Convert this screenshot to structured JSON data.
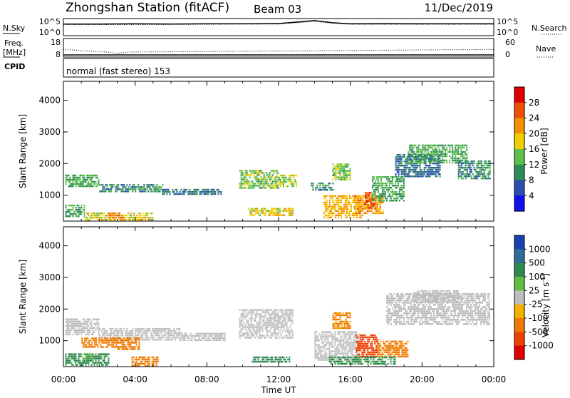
{
  "header": {
    "station": "Zhongshan Station (fitACF)",
    "beam": "Beam 03",
    "date": "11/Dec/2019"
  },
  "noise_panel": {
    "left_label": "N.Sky",
    "right_label": "N.Search",
    "left_ticks": [
      "10^5",
      "10^0"
    ],
    "right_ticks": [
      "10^5",
      "10^0"
    ]
  },
  "freq_panel": {
    "left_label_line1": "Freq.",
    "left_label_line2": "[MHz]",
    "right_label": "Nave",
    "left_ticks": [
      "18",
      "8"
    ],
    "right_ticks": [
      "60",
      "0"
    ]
  },
  "cpid": {
    "label": "CPID",
    "value": "normal (fast stereo) 153"
  },
  "axes": {
    "ylabel": "Slant Range [km]",
    "xlabel": "Time UT",
    "y_ticks": [
      "1000",
      "2000",
      "3000",
      "4000"
    ],
    "x_ticks": [
      "00:00",
      "04:00",
      "08:00",
      "12:00",
      "16:00",
      "20:00",
      "00:00"
    ]
  },
  "power_colorbar": {
    "label": "Power [dB]",
    "ticks": [
      "4",
      "8",
      "12",
      "16",
      "20",
      "24",
      "28"
    ],
    "colors": [
      "#1010ee",
      "#2a4fb0",
      "#2f8a5a",
      "#5cc04a",
      "#f0d000",
      "#f59000",
      "#f05000",
      "#e00000"
    ]
  },
  "velocity_colorbar": {
    "label": "Velocity [m s",
    "label_sup": "-1",
    "label_end": "]",
    "ticks": [
      "1000",
      "500",
      "100",
      "25",
      "-25",
      "-100",
      "-500",
      "-1000"
    ],
    "colors": [
      "#1a3fb5",
      "#2f6d9c",
      "#2f8a50",
      "#5fbf42",
      "#bebebe",
      "#f3b000",
      "#f07a00",
      "#ef4000",
      "#e00000"
    ]
  },
  "chart_data": [
    {
      "type": "line",
      "title": "",
      "series": [
        {
          "name": "N.Sky",
          "x": [
            0,
            2,
            4,
            6,
            8,
            10,
            12,
            13,
            14,
            15,
            16,
            18,
            20,
            22,
            24
          ],
          "values": [
            3.5,
            3.5,
            3.6,
            3.5,
            3.6,
            3.6,
            3.7,
            4.2,
            4.8,
            4.0,
            3.6,
            3.7,
            3.6,
            3.6,
            3.6
          ]
        },
        {
          "name": "N.Search",
          "x": [
            0,
            4,
            8,
            12,
            13,
            14,
            15,
            16,
            20,
            24
          ],
          "values": [
            3.3,
            3.3,
            3.4,
            3.5,
            4.0,
            4.5,
            3.8,
            3.4,
            3.4,
            3.4
          ]
        }
      ],
      "ylim": [
        0,
        5
      ]
    },
    {
      "type": "line",
      "series": [
        {
          "name": "Freq.",
          "x": [
            0,
            2.4,
            3.6,
            24
          ],
          "values": [
            8.5,
            8.5,
            8.5,
            8.5
          ]
        },
        {
          "name": "Nave",
          "x": [
            0,
            2.4,
            3.0,
            3.6,
            24
          ],
          "values": [
            26,
            15,
            10,
            15,
            26
          ]
        }
      ],
      "ylim": [
        8,
        18
      ]
    },
    {
      "type": "heatmap",
      "title": "Power [dB]",
      "xlabel": "Time UT",
      "ylabel": "Slant Range [km]",
      "xlim": [
        0,
        24
      ],
      "ylim": [
        180,
        4600
      ],
      "patches": [
        {
          "t": [
            0.1,
            2.0
          ],
          "r": [
            1250,
            1650
          ],
          "v": 12
        },
        {
          "t": [
            2.0,
            5.5
          ],
          "r": [
            1100,
            1350
          ],
          "v": 10
        },
        {
          "t": [
            5.5,
            8.8
          ],
          "r": [
            1000,
            1200
          ],
          "v": 8
        },
        {
          "t": [
            0.1,
            1.2
          ],
          "r": [
            350,
            700
          ],
          "v": 12
        },
        {
          "t": [
            1.2,
            5.0
          ],
          "r": [
            200,
            450
          ],
          "v": 18
        },
        {
          "t": [
            2.5,
            3.3
          ],
          "r": [
            250,
            450
          ],
          "v": 24
        },
        {
          "t": [
            9.8,
            12.0
          ],
          "r": [
            1250,
            1800
          ],
          "v": 14
        },
        {
          "t": [
            12.0,
            13.0
          ],
          "r": [
            1250,
            1650
          ],
          "v": 16
        },
        {
          "t": [
            10.3,
            12.8
          ],
          "r": [
            350,
            600
          ],
          "v": 18
        },
        {
          "t": [
            13.8,
            15.0
          ],
          "r": [
            1150,
            1400
          ],
          "v": 10
        },
        {
          "t": [
            14.5,
            16.8
          ],
          "r": [
            300,
            1000
          ],
          "v": 20
        },
        {
          "t": [
            15.0,
            16.0
          ],
          "r": [
            1500,
            2000
          ],
          "v": 14
        },
        {
          "t": [
            16.2,
            17.8
          ],
          "r": [
            450,
            1000
          ],
          "v": 22
        },
        {
          "t": [
            16.8,
            17.4
          ],
          "r": [
            600,
            1100
          ],
          "v": 26
        },
        {
          "t": [
            17.2,
            19.0
          ],
          "r": [
            850,
            1600
          ],
          "v": 12
        },
        {
          "t": [
            18.5,
            21.0
          ],
          "r": [
            1600,
            2300
          ],
          "v": 8
        },
        {
          "t": [
            19.2,
            22.5
          ],
          "r": [
            2000,
            2600
          ],
          "v": 12
        },
        {
          "t": [
            22.0,
            23.8
          ],
          "r": [
            1500,
            2100
          ],
          "v": 10
        }
      ]
    },
    {
      "type": "heatmap",
      "title": "Velocity [m s-1]",
      "xlabel": "Time UT",
      "ylabel": "Slant Range [km]",
      "xlim": [
        0,
        24
      ],
      "ylim": [
        180,
        4600
      ],
      "patches": [
        {
          "t": [
            0.1,
            2.0
          ],
          "r": [
            1200,
            1700
          ],
          "v": 0
        },
        {
          "t": [
            2.0,
            6.5
          ],
          "r": [
            1050,
            1400
          ],
          "v": 0
        },
        {
          "t": [
            6.5,
            9.0
          ],
          "r": [
            1000,
            1250
          ],
          "v": 0
        },
        {
          "t": [
            1.0,
            3.0
          ],
          "r": [
            800,
            1100
          ],
          "v": -200
        },
        {
          "t": [
            3.0,
            4.2
          ],
          "r": [
            700,
            1100
          ],
          "v": -300
        },
        {
          "t": [
            0.1,
            2.5
          ],
          "r": [
            250,
            600
          ],
          "v": 150
        },
        {
          "t": [
            3.8,
            5.3
          ],
          "r": [
            200,
            500
          ],
          "v": -400
        },
        {
          "t": [
            9.8,
            12.8
          ],
          "r": [
            1100,
            2000
          ],
          "v": 0
        },
        {
          "t": [
            10.5,
            12.6
          ],
          "r": [
            300,
            500
          ],
          "v": 200
        },
        {
          "t": [
            14.0,
            16.5
          ],
          "r": [
            400,
            1300
          ],
          "v": 0
        },
        {
          "t": [
            15.0,
            16.0
          ],
          "r": [
            1400,
            1900
          ],
          "v": -150
        },
        {
          "t": [
            16.3,
            17.5
          ],
          "r": [
            500,
            1200
          ],
          "v": -700
        },
        {
          "t": [
            17.5,
            19.2
          ],
          "r": [
            500,
            1000
          ],
          "v": -300
        },
        {
          "t": [
            14.8,
            18.5
          ],
          "r": [
            250,
            500
          ],
          "v": 150
        },
        {
          "t": [
            18.0,
            23.8
          ],
          "r": [
            1500,
            2500
          ],
          "v": 0
        },
        {
          "t": [
            19.5,
            22.0
          ],
          "r": [
            2200,
            2600
          ],
          "v": 0
        }
      ]
    }
  ]
}
